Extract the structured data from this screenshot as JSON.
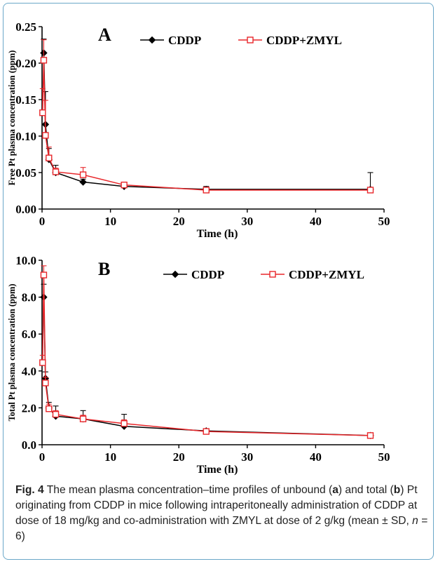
{
  "charts": [
    {
      "panel_letter": "A",
      "ylabel": "Free Pt plasma concentration (ppm)",
      "xlabel": "Time (h)",
      "y_ticks": [
        "0.00",
        "0.05",
        "0.10",
        "0.15",
        "0.20",
        "0.25"
      ],
      "x_ticks": [
        "0",
        "10",
        "20",
        "30",
        "40",
        "50"
      ]
    },
    {
      "panel_letter": "B",
      "ylabel": "Total Pt plasma concentration (ppm)",
      "xlabel": "Time (h)",
      "y_ticks": [
        "0.0",
        "2.0",
        "4.0",
        "6.0",
        "8.0",
        "10.0"
      ],
      "x_ticks": [
        "0",
        "10",
        "20",
        "30",
        "40",
        "50"
      ]
    }
  ],
  "colors": {
    "cddp": "#000000",
    "zmyl": "#e8262a",
    "frame": "#6aa7c8"
  },
  "caption": {
    "fig_label": "Fig. 4",
    "t1": " The mean plasma concentration–time profiles of unbound (",
    "a": "a",
    "t2": ") and total (",
    "b": "b",
    "t3": ") Pt originating from CDDP in mice following intraperitoneally administration of CDDP at dose of 18 mg/kg and co-administration with ZMYL at dose of 2 g/kg (mean ± SD, ",
    "n": "n",
    "t4": " = 6)"
  },
  "chart_data": [
    {
      "type": "line",
      "title": "A",
      "xlabel": "Time (h)",
      "ylabel": "Free Pt plasma concentration (ppm)",
      "xlim": [
        0,
        50
      ],
      "ylim": [
        0,
        0.25
      ],
      "legend_position": "top-right",
      "grid": false,
      "series": [
        {
          "name": "CDDP",
          "marker": "filled-diamond",
          "x": [
            0.25,
            0.5,
            1,
            2,
            6,
            12,
            24,
            48
          ],
          "y": [
            0.214,
            0.116,
            0.068,
            0.05,
            0.037,
            0.031,
            0.027,
            0.027
          ],
          "error": [
            0.019,
            0.045,
            0.015,
            0.01,
            0.004,
            0.003,
            0.004,
            0.023
          ]
        },
        {
          "name": "CDDP+ZMYL",
          "marker": "open-square",
          "x": [
            0.083,
            0.25,
            0.5,
            1,
            2,
            6,
            12,
            24,
            48
          ],
          "y": [
            0.132,
            0.204,
            0.101,
            0.07,
            0.051,
            0.047,
            0.033,
            0.026,
            0.026
          ],
          "error": [
            0.033,
            0.028,
            0.048,
            0.015,
            0.005,
            0.01,
            0.004,
            0.003,
            0.003
          ]
        }
      ]
    },
    {
      "type": "line",
      "title": "B",
      "xlabel": "Time (h)",
      "ylabel": "Total Pt plasma concentration (ppm)",
      "xlim": [
        0,
        50
      ],
      "ylim": [
        0,
        10
      ],
      "legend_position": "top-right",
      "grid": false,
      "series": [
        {
          "name": "CDDP",
          "marker": "filled-diamond",
          "x": [
            0.25,
            0.5,
            1,
            2,
            6,
            12,
            24,
            48
          ],
          "y": [
            8.0,
            3.6,
            2.0,
            1.55,
            1.4,
            1.0,
            0.75,
            0.5
          ],
          "error": [
            0.7,
            0.35,
            0.3,
            0.55,
            0.45,
            0.65,
            0.1,
            0.05
          ]
        },
        {
          "name": "CDDP+ZMYL",
          "marker": "open-square",
          "x": [
            0.083,
            0.25,
            0.5,
            1,
            2,
            6,
            12,
            24,
            48
          ],
          "y": [
            4.45,
            9.2,
            3.35,
            1.95,
            1.65,
            1.4,
            1.15,
            0.72,
            0.5
          ],
          "error": [
            0.4,
            0.5,
            0.3,
            0.25,
            0.2,
            0.2,
            0.2,
            0.1,
            0.05
          ]
        }
      ]
    }
  ]
}
